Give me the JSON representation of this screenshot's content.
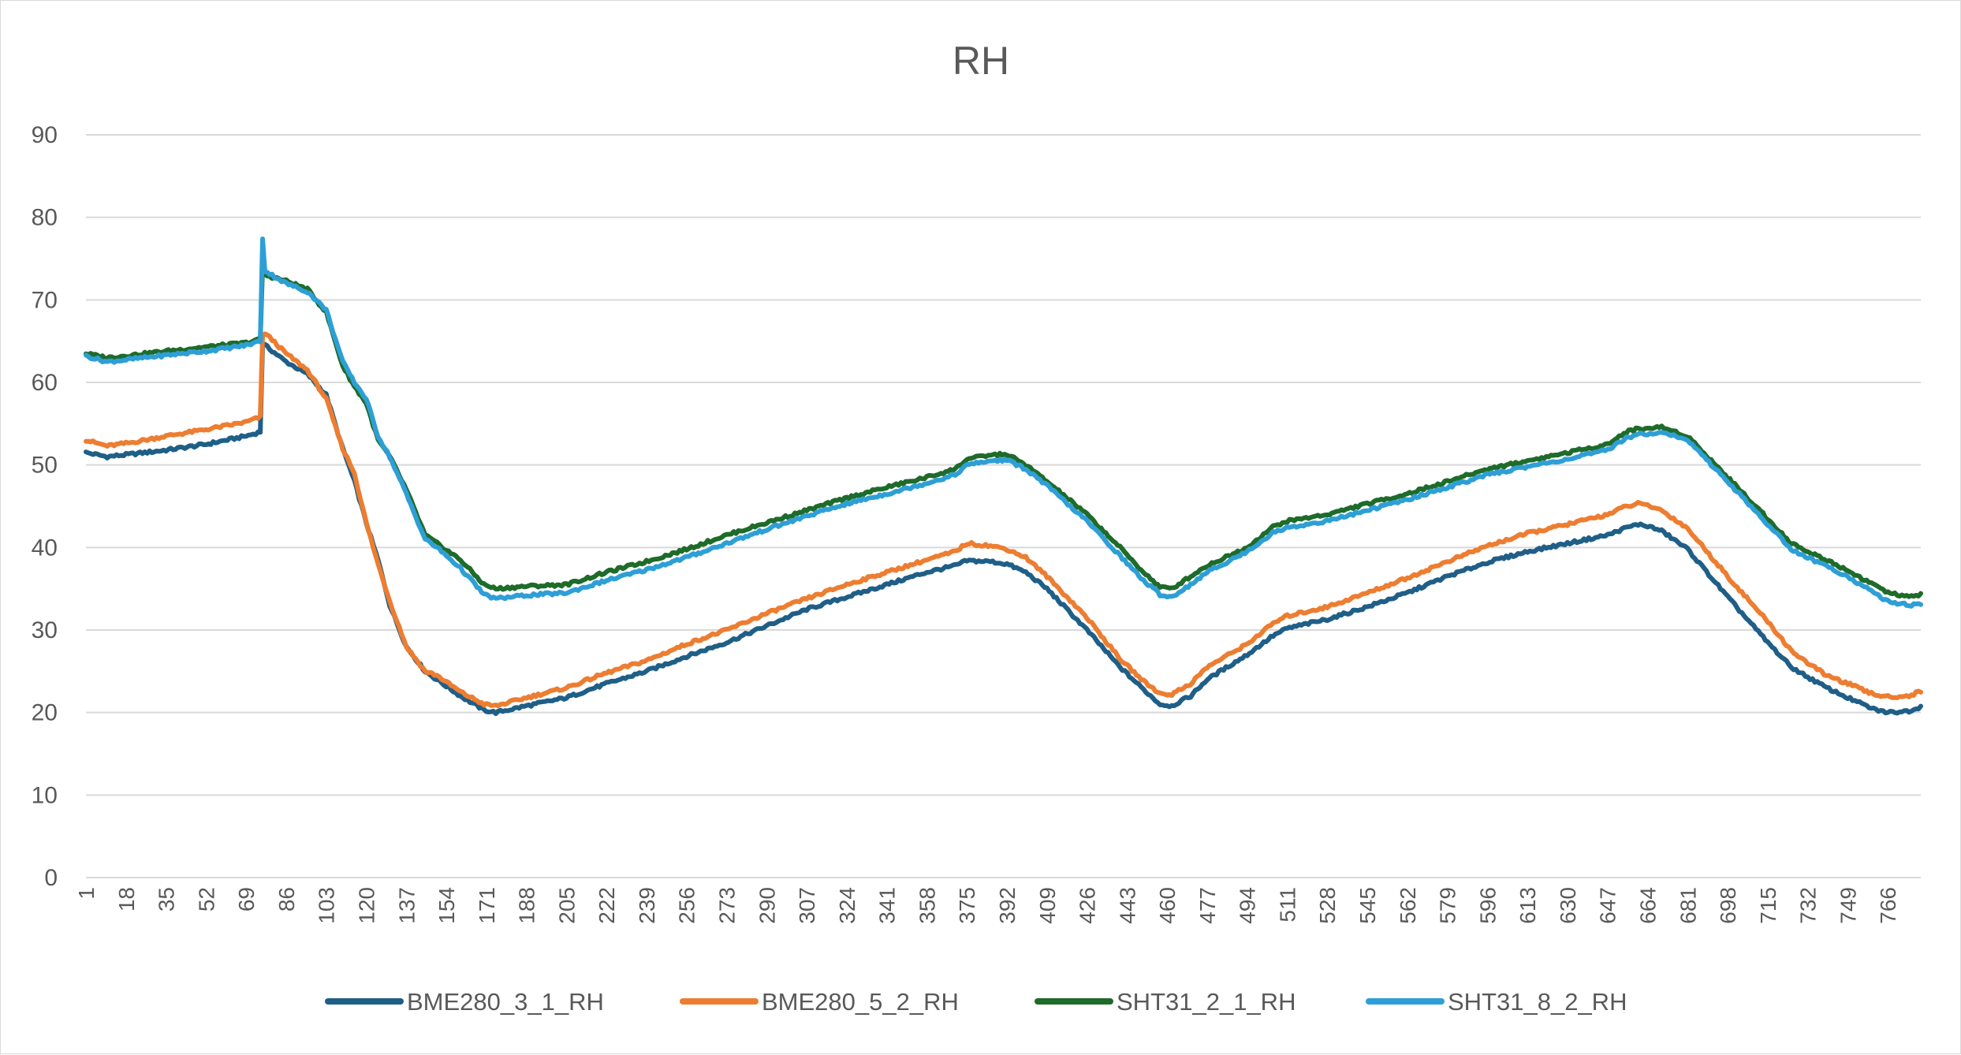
{
  "chart_data": {
    "type": "line",
    "title": "RH",
    "xlabel": "",
    "ylabel": "",
    "ylim": [
      0,
      90
    ],
    "yticks": [
      0,
      10,
      20,
      30,
      40,
      50,
      60,
      70,
      80,
      90
    ],
    "xlim": [
      1,
      780
    ],
    "xticks": [
      1,
      18,
      35,
      52,
      69,
      86,
      103,
      120,
      137,
      154,
      171,
      188,
      205,
      222,
      239,
      256,
      273,
      290,
      307,
      324,
      341,
      358,
      375,
      392,
      409,
      426,
      443,
      460,
      477,
      494,
      511,
      528,
      545,
      562,
      579,
      596,
      613,
      630,
      647,
      664,
      681,
      698,
      715,
      732,
      749,
      766
    ],
    "grid": "horizontal",
    "legend": "bottom",
    "series": [
      {
        "name": "BME280_3_1_RH",
        "color": "#1f5f87",
        "x": [
          1,
          10,
          20,
          35,
          52,
          69,
          75,
          76,
          77,
          86,
          95,
          103,
          110,
          115,
          120,
          125,
          130,
          137,
          145,
          150,
          160,
          170,
          175,
          188,
          205,
          222,
          239,
          256,
          273,
          290,
          307,
          324,
          341,
          358,
          370,
          375,
          385,
          392,
          400,
          409,
          426,
          440,
          450,
          457,
          462,
          470,
          477,
          494,
          505,
          511,
          528,
          545,
          562,
          579,
          596,
          613,
          630,
          647,
          655,
          660,
          664,
          670,
          681,
          698,
          715,
          725,
          732,
          740,
          749,
          760,
          766,
          775,
          780
        ],
        "values": [
          51.5,
          51.0,
          51.3,
          51.8,
          52.5,
          53.5,
          54.0,
          64.5,
          64.5,
          62.5,
          61.0,
          58.5,
          52.0,
          48.0,
          43.0,
          38.5,
          33.0,
          28.0,
          25.0,
          24.0,
          22.0,
          20.3,
          20.0,
          20.8,
          21.8,
          23.5,
          25.0,
          26.8,
          28.5,
          30.5,
          32.5,
          34.0,
          35.5,
          37.0,
          37.8,
          38.4,
          38.3,
          38.0,
          37.0,
          35.0,
          30.0,
          25.5,
          22.8,
          21.0,
          20.8,
          22.0,
          24.0,
          27.0,
          29.3,
          30.2,
          31.3,
          32.8,
          34.5,
          36.5,
          38.2,
          39.5,
          40.5,
          41.5,
          42.4,
          42.8,
          42.6,
          42.0,
          39.8,
          34.0,
          28.5,
          25.5,
          24.3,
          23.0,
          21.8,
          20.4,
          20.0,
          20.2,
          20.7
        ]
      },
      {
        "name": "BME280_5_2_RH",
        "color": "#ed7d31",
        "x": [
          1,
          10,
          20,
          35,
          52,
          69,
          75,
          76,
          77,
          86,
          95,
          103,
          110,
          115,
          120,
          125,
          130,
          137,
          145,
          150,
          160,
          170,
          175,
          188,
          205,
          222,
          239,
          256,
          273,
          290,
          307,
          324,
          341,
          358,
          370,
          375,
          385,
          392,
          400,
          409,
          426,
          440,
          450,
          457,
          462,
          470,
          477,
          494,
          505,
          511,
          528,
          545,
          562,
          579,
          596,
          613,
          630,
          647,
          655,
          660,
          664,
          670,
          681,
          698,
          715,
          725,
          732,
          740,
          749,
          760,
          766,
          775,
          780
        ],
        "values": [
          53.0,
          52.3,
          52.7,
          53.5,
          54.3,
          55.2,
          55.8,
          65.5,
          66.0,
          63.5,
          61.5,
          58.0,
          52.0,
          49.0,
          43.0,
          38.0,
          33.5,
          28.0,
          25.0,
          24.5,
          22.5,
          21.0,
          20.8,
          21.8,
          23.0,
          24.8,
          26.3,
          28.3,
          30.0,
          32.0,
          33.8,
          35.5,
          37.0,
          38.5,
          39.5,
          40.5,
          40.2,
          39.8,
          38.8,
          36.5,
          31.5,
          26.5,
          23.8,
          22.3,
          22.2,
          23.5,
          25.5,
          28.3,
          30.8,
          31.7,
          32.8,
          34.5,
          36.3,
          38.3,
          40.2,
          41.7,
          42.8,
          44.0,
          45.0,
          45.3,
          45.1,
          44.5,
          42.3,
          36.5,
          31.0,
          27.5,
          26.0,
          24.5,
          23.5,
          22.2,
          21.9,
          22.0,
          22.6
        ]
      },
      {
        "name": "SHT31_2_1_RH",
        "color": "#1e6b2a",
        "x": [
          1,
          10,
          20,
          35,
          52,
          69,
          75,
          76,
          77,
          86,
          95,
          103,
          110,
          115,
          120,
          125,
          130,
          137,
          145,
          150,
          160,
          170,
          175,
          188,
          205,
          222,
          239,
          256,
          273,
          290,
          307,
          324,
          341,
          358,
          370,
          375,
          385,
          392,
          400,
          409,
          426,
          440,
          450,
          457,
          462,
          470,
          477,
          494,
          505,
          511,
          528,
          545,
          562,
          579,
          596,
          613,
          630,
          647,
          655,
          660,
          664,
          670,
          681,
          698,
          715,
          725,
          732,
          740,
          749,
          760,
          766,
          775,
          780
        ],
        "values": [
          63.5,
          63.0,
          63.3,
          63.8,
          64.3,
          64.8,
          65.2,
          74.0,
          73.0,
          72.3,
          71.3,
          68.5,
          62.0,
          59.5,
          57.5,
          53.0,
          51.0,
          47.0,
          41.5,
          40.5,
          38.5,
          35.5,
          35.0,
          35.3,
          35.5,
          37.0,
          38.3,
          39.8,
          41.5,
          43.0,
          44.5,
          46.0,
          47.3,
          48.5,
          49.5,
          50.7,
          51.2,
          51.3,
          50.0,
          48.0,
          44.0,
          40.0,
          37.0,
          35.2,
          35.0,
          36.5,
          37.8,
          40.0,
          42.5,
          43.2,
          44.0,
          45.3,
          46.5,
          48.0,
          49.5,
          50.5,
          51.5,
          52.5,
          54.0,
          54.4,
          54.4,
          54.6,
          53.5,
          48.5,
          43.5,
          40.5,
          39.5,
          38.5,
          37.2,
          35.5,
          34.5,
          34.0,
          34.3
        ]
      },
      {
        "name": "SHT31_8_2_RH",
        "color": "#2e9fd6",
        "x": [
          1,
          10,
          20,
          35,
          52,
          69,
          75,
          76,
          77,
          86,
          95,
          103,
          110,
          115,
          120,
          125,
          130,
          137,
          145,
          150,
          160,
          170,
          175,
          188,
          205,
          222,
          239,
          256,
          273,
          290,
          307,
          324,
          341,
          358,
          370,
          375,
          385,
          392,
          400,
          409,
          426,
          440,
          450,
          457,
          462,
          470,
          477,
          494,
          505,
          511,
          528,
          545,
          562,
          579,
          596,
          613,
          630,
          647,
          655,
          660,
          664,
          670,
          681,
          698,
          715,
          725,
          732,
          740,
          749,
          760,
          766,
          775,
          780
        ],
        "values": [
          63.2,
          62.5,
          62.8,
          63.3,
          63.8,
          64.5,
          65.0,
          77.5,
          73.5,
          72.0,
          71.0,
          68.8,
          62.5,
          60.0,
          58.0,
          53.5,
          51.0,
          46.5,
          41.0,
          40.0,
          37.5,
          34.3,
          33.8,
          34.2,
          34.5,
          36.0,
          37.3,
          38.8,
          40.5,
          42.2,
          43.8,
          45.3,
          46.5,
          47.8,
          48.8,
          50.0,
          50.5,
          50.6,
          49.5,
          47.5,
          43.2,
          39.0,
          36.0,
          34.3,
          34.0,
          35.5,
          37.0,
          39.5,
          41.8,
          42.4,
          43.2,
          44.5,
          45.8,
          47.3,
          48.8,
          49.8,
          50.7,
          51.8,
          53.3,
          53.7,
          53.8,
          54.0,
          53.0,
          48.0,
          42.8,
          39.8,
          38.8,
          37.7,
          36.5,
          34.5,
          33.5,
          33.0,
          33.2
        ]
      }
    ]
  }
}
